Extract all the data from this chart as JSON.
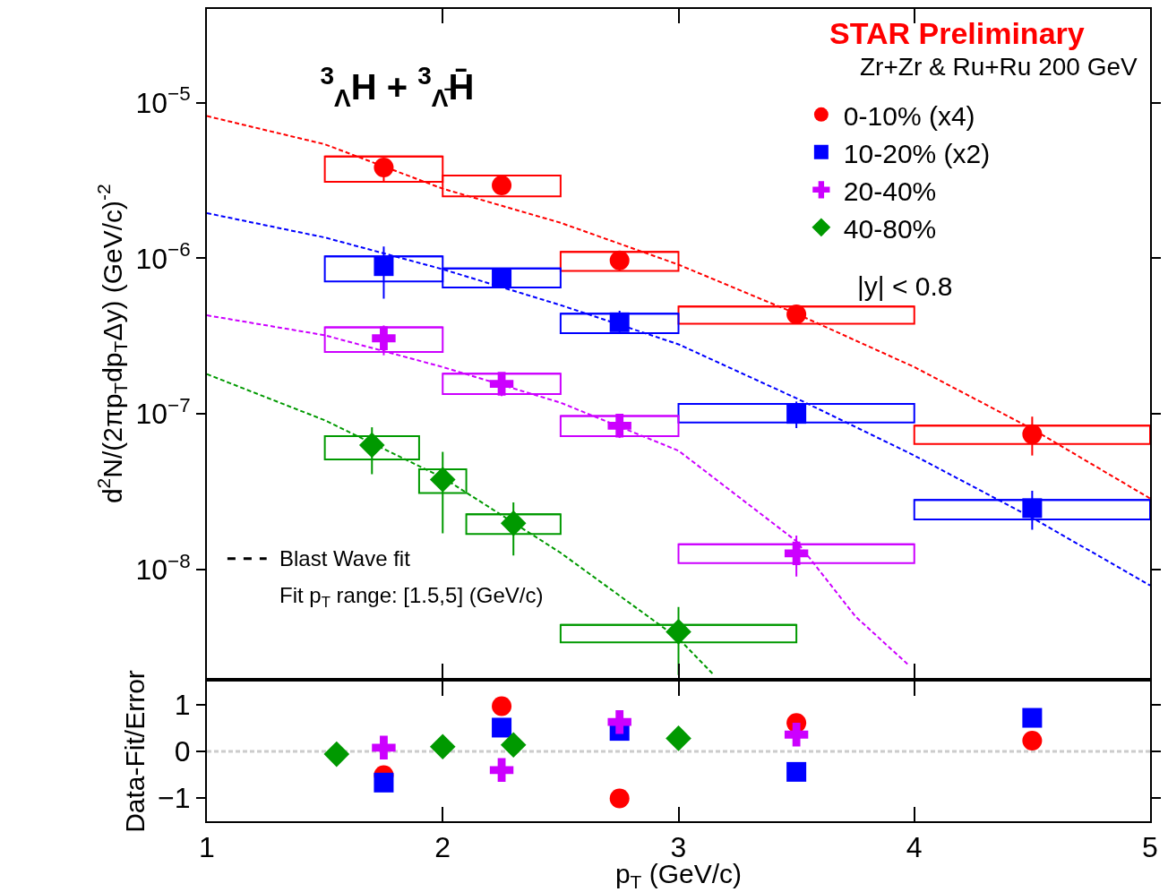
{
  "chart_data": [
    {
      "type": "scatter",
      "title": "$^{3}$$_{Λ}$H + $^{3}$$_{Λ̄}$H̄",
      "ylabel": "d$^{2}$N/(2πp$_{T}$dp$_{T}$Δy) (GeV/c)$^{-2}$",
      "log": "y",
      "xlim": [
        1,
        5
      ],
      "xticks": [
        {
          "value": 1,
          "label": null
        },
        {
          "value": 2,
          "label": null
        },
        {
          "value": 3,
          "label": null
        },
        {
          "value": 4,
          "label": null
        },
        {
          "value": 5,
          "label": null
        }
      ],
      "ylim": [
        2e-09,
        4e-05
      ],
      "yticks": [
        {
          "value": 1e-08,
          "label": "10$^{−8}$"
        },
        {
          "value": 1e-07,
          "label": "10$^{−7}$"
        },
        {
          "value": 1e-06,
          "label": "10$^{−6}$"
        },
        {
          "value": 1e-05,
          "label": "10$^{−5}$"
        }
      ],
      "tick_labels": "y",
      "grid": false,
      "legend": "top right",
      "annotations": [
        "STAR Preliminary",
        "Zr+Zr & Ru+Ru 200 GeV",
        "|y| < 0.8",
        "Blast Wave fit",
        "Fit p$_{T}$ range: [1.5,5] (GeV/c)"
      ],
      "series": [
        {
          "type": "bar",
          "color": "#ff0000",
          "x": [
            1.75,
            2.25,
            2.75,
            3.5,
            4.5
          ],
          "xerrors": [
            0.25,
            0.25,
            0.25,
            0.5,
            0.5
          ],
          "base": [
            3.1e-06,
            2.5e-06,
            8.3e-07,
            3.8e-07,
            6.4e-08
          ],
          "values": [
            1.4e-06,
            9e-07,
            2.7e-07,
            1.1e-07,
            2e-08
          ]
        },
        {
          "type": "bar",
          "color": "#0000ff",
          "x": [
            1.75,
            2.25,
            2.75,
            3.5,
            4.5
          ],
          "xerrors": [
            0.25,
            0.25,
            0.25,
            0.5,
            0.5
          ],
          "base": [
            7.1e-07,
            6.5e-07,
            3.3e-07,
            8.8e-08,
            2.1e-08
          ],
          "values": [
            3.2e-07,
            2.1e-07,
            1.1e-07,
            2.8e-08,
            7e-09
          ]
        },
        {
          "type": "bar",
          "color": "#cc00ff",
          "x": [
            1.75,
            2.25,
            2.75,
            3.5
          ],
          "xerrors": [
            0.25,
            0.25,
            0.25,
            0.5
          ],
          "base": [
            2.5e-07,
            1.34e-07,
            7.2e-08,
            1.1e-08
          ],
          "values": [
            1.1e-07,
            4.7e-08,
            2.5e-08,
            3.5e-09
          ]
        },
        {
          "type": "bar",
          "color": "#009900",
          "x": [
            1.7,
            2.0,
            2.3,
            3.0
          ],
          "xerrors": [
            0.2,
            0.1,
            0.2,
            0.5
          ],
          "base": [
            5.1e-08,
            3.1e-08,
            1.69e-08,
            3.4e-09
          ],
          "values": [
            2.1e-08,
            1.3e-08,
            5.7e-09,
            1e-09
          ]
        },
        {
          "type": "line",
          "line_style": "dashed",
          "color": "#ff0000",
          "x": [
            1,
            1.5,
            2,
            2.5,
            3,
            3.5,
            4,
            4.5,
            5
          ],
          "values": [
            8.2e-06,
            5.4e-06,
            2.8e-06,
            1.69e-06,
            9.1e-07,
            4.4e-07,
            2e-07,
            8e-08,
            2.86e-08
          ]
        },
        {
          "type": "line",
          "line_style": "dashed",
          "color": "#0000ff",
          "x": [
            1,
            1.5,
            2,
            2.5,
            3,
            3.5,
            4,
            4.5,
            5
          ],
          "values": [
            1.95e-06,
            1.36e-06,
            8.5e-07,
            5e-07,
            2.8e-07,
            1.26e-07,
            5.4e-08,
            2.15e-08,
            7.9e-09
          ]
        },
        {
          "type": "line",
          "line_style": "dashed",
          "color": "#cc00ff",
          "x": [
            1,
            1.5,
            2,
            2.5,
            3,
            3.5,
            3.75,
            3.98
          ],
          "values": [
            4.3e-07,
            3.2e-07,
            2e-07,
            1.18e-07,
            5.8e-08,
            1.52e-08,
            5e-09,
            2.4e-09
          ]
        },
        {
          "type": "line",
          "line_style": "dashed",
          "color": "#009900",
          "x": [
            1,
            1.5,
            2,
            2.5,
            3,
            3.15
          ],
          "values": [
            1.8e-07,
            9.1e-08,
            3.9e-08,
            1.28e-08,
            3.6e-09,
            2.1e-09
          ]
        },
        {
          "type": "scatter",
          "name": "0-10% (x4)",
          "marker": "circle",
          "color": "#ff0000",
          "x": [
            1.75,
            2.25,
            2.75,
            3.5,
            4.5
          ],
          "values": [
            3.83e-06,
            2.94e-06,
            9.7e-07,
            4.36e-07,
            7.4e-08
          ],
          "errors": [
            [
              3.1e-06,
              3.83e-06
            ],
            null,
            [
              8.3e-07,
              1.1e-06
            ],
            null,
            [
              5.4e-08,
              9.6e-08
            ]
          ]
        },
        {
          "type": "scatter",
          "name": "10-20% (x2)",
          "marker": "square",
          "color": "#0000ff",
          "x": [
            1.75,
            2.25,
            2.75,
            3.5,
            4.5
          ],
          "values": [
            8.9e-07,
            7.5e-07,
            3.88e-07,
            1e-07,
            2.48e-08
          ],
          "errors": [
            [
              5.5e-07,
              1.19e-06
            ],
            [
              6.6e-07,
              8.6e-07
            ],
            [
              3.3e-07,
              4.6e-07
            ],
            [
              8.1e-08,
              1.2e-07
            ],
            [
              1.8e-08,
              3.2e-08
            ]
          ]
        },
        {
          "type": "scatter",
          "name": "20-40%",
          "marker": "cross",
          "color": "#cc00ff",
          "x": [
            1.75,
            2.25,
            2.75,
            3.5
          ],
          "values": [
            3.06e-07,
            1.56e-07,
            8.4e-08,
            1.27e-08
          ],
          "errors": [
            [
              2.38e-07,
              3.7e-07
            ],
            [
              1.3e-07,
              1.83e-07
            ],
            [
              7e-08,
              1e-07
            ],
            [
              9e-09,
              1.65e-08
            ]
          ]
        },
        {
          "type": "scatter",
          "name": "40-80%",
          "marker": "diamond",
          "color": "#009900",
          "x": [
            1.7,
            2.0,
            2.3,
            3.0
          ],
          "values": [
            6.3e-08,
            3.78e-08,
            1.98e-08,
            3.98e-09
          ],
          "errors": [
            [
              4.1e-08,
              8.2e-08
            ],
            [
              1.71e-08,
              5.7e-08
            ],
            [
              1.23e-08,
              2.7e-08
            ],
            [
              2.1e-09,
              5.75e-09
            ]
          ]
        }
      ]
    },
    {
      "type": "scatter",
      "xlabel": "p$_{T}$ (GeV/c)",
      "ylabel": "Data-Fit/Error",
      "xlim": [
        1,
        5
      ],
      "xticks": [
        1,
        2,
        3,
        4,
        5
      ],
      "ylim": [
        -1.5,
        1.5
      ],
      "yticks": [
        {
          "value": -1,
          "label": "−1"
        },
        0,
        1
      ],
      "grid": false,
      "ref_lines": [
        {
          "axis": "y",
          "value": 0,
          "color": "#cccccc",
          "line_style": "dashed"
        }
      ],
      "series": [
        {
          "marker": "circle",
          "color": "#ff0000",
          "x": [
            1.75,
            2.25,
            2.75,
            3.5,
            4.5
          ],
          "values": [
            -0.51,
            0.97,
            -1.01,
            0.61,
            0.23
          ]
        },
        {
          "marker": "square",
          "color": "#0000ff",
          "x": [
            1.75,
            2.25,
            2.75,
            3.5,
            4.5
          ],
          "values": [
            -0.67,
            0.51,
            0.44,
            -0.44,
            0.72
          ]
        },
        {
          "marker": "cross",
          "color": "#cc00ff",
          "x": [
            1.75,
            2.25,
            2.75,
            3.5
          ],
          "values": [
            0.08,
            -0.4,
            0.63,
            0.36
          ]
        },
        {
          "marker": "diamond",
          "color": "#009900",
          "x": [
            1.55,
            2.0,
            2.3,
            3.0
          ],
          "values": [
            -0.06,
            0.1,
            0.14,
            0.28
          ]
        }
      ]
    }
  ]
}
